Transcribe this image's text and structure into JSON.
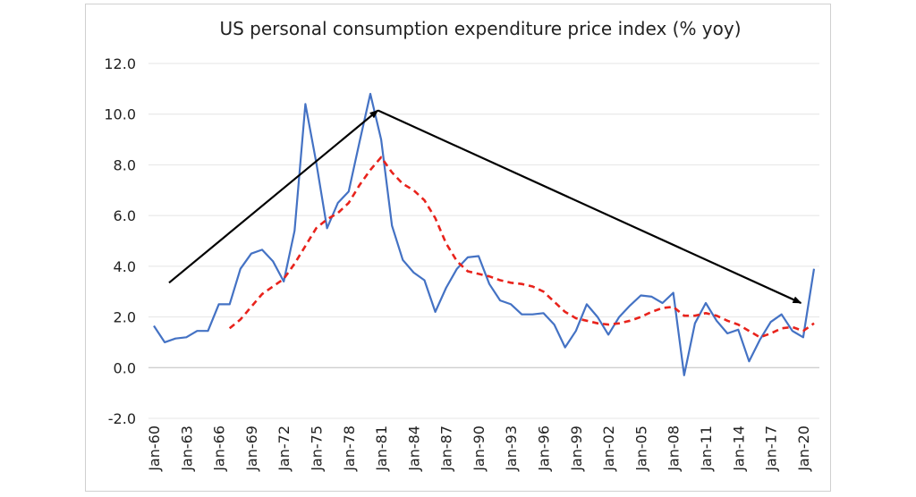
{
  "chart_data": {
    "type": "line",
    "title": "US personal consumption expenditure price index (% yoy)",
    "xlabel": "",
    "ylabel": "",
    "ylim": [
      -2.0,
      12.0
    ],
    "yticks": [
      "-2.0",
      "0.0",
      "2.0",
      "4.0",
      "6.0",
      "8.0",
      "10.0",
      "12.0"
    ],
    "xtick_labels": [
      "Jan-60",
      "Jan-63",
      "Jan-66",
      "Jan-69",
      "Jan-72",
      "Jan-75",
      "Jan-78",
      "Jan-81",
      "Jan-84",
      "Jan-87",
      "Jan-90",
      "Jan-93",
      "Jan-96",
      "Jan-99",
      "Jan-02",
      "Jan-05",
      "Jan-08",
      "Jan-11",
      "Jan-14",
      "Jan-17",
      "Jan-20"
    ],
    "x": [
      1960,
      1961,
      1962,
      1963,
      1964,
      1965,
      1966,
      1967,
      1968,
      1969,
      1970,
      1971,
      1972,
      1973,
      1974,
      1975,
      1976,
      1977,
      1978,
      1979,
      1980,
      1981,
      1982,
      1983,
      1984,
      1985,
      1986,
      1987,
      1988,
      1989,
      1990,
      1991,
      1992,
      1993,
      1994,
      1995,
      1996,
      1997,
      1998,
      1999,
      2000,
      2001,
      2002,
      2003,
      2004,
      2005,
      2006,
      2007,
      2008,
      2009,
      2010,
      2011,
      2012,
      2013,
      2014,
      2015,
      2016,
      2017,
      2018,
      2019,
      2020,
      2021
    ],
    "series": [
      {
        "color": "#4472C4",
        "style": "solid",
        "values": [
          1.65,
          1.0,
          1.15,
          1.2,
          1.45,
          1.45,
          2.5,
          2.5,
          3.9,
          4.5,
          4.65,
          4.2,
          3.4,
          5.4,
          10.4,
          8.1,
          5.5,
          6.5,
          6.95,
          8.9,
          10.8,
          9.0,
          5.6,
          4.25,
          3.75,
          3.45,
          2.2,
          3.15,
          3.9,
          4.35,
          4.4,
          3.3,
          2.65,
          2.5,
          2.1,
          2.1,
          2.15,
          1.7,
          0.8,
          1.45,
          2.5,
          2.0,
          1.3,
          2.0,
          2.45,
          2.85,
          2.8,
          2.55,
          2.95,
          -0.3,
          1.75,
          2.55,
          1.85,
          1.35,
          1.5,
          0.25,
          1.1,
          1.8,
          2.1,
          1.45,
          1.2,
          3.9
        ]
      },
      {
        "color": "#e8231c",
        "style": "dashed",
        "values": [
          null,
          null,
          null,
          null,
          null,
          null,
          null,
          1.55,
          1.9,
          2.4,
          2.9,
          3.2,
          3.5,
          4.1,
          4.8,
          5.5,
          5.85,
          6.1,
          6.5,
          7.2,
          7.8,
          8.3,
          7.7,
          7.25,
          7.0,
          6.6,
          5.9,
          4.9,
          4.2,
          3.8,
          3.7,
          3.6,
          3.45,
          3.35,
          3.3,
          3.2,
          3.0,
          2.6,
          2.2,
          1.95,
          1.85,
          1.75,
          1.7,
          1.75,
          1.85,
          2.0,
          2.2,
          2.35,
          2.4,
          2.05,
          2.05,
          2.15,
          2.05,
          1.85,
          1.7,
          1.45,
          1.2,
          1.35,
          1.55,
          1.6,
          1.45,
          1.75
        ]
      }
    ],
    "annotations": [
      {
        "type": "arrow",
        "from": [
          1961.4,
          3.35
        ],
        "to": [
          1980.7,
          10.15
        ]
      },
      {
        "type": "arrow",
        "from": [
          1980.7,
          10.15
        ],
        "to": [
          2019.8,
          2.55
        ]
      }
    ]
  }
}
